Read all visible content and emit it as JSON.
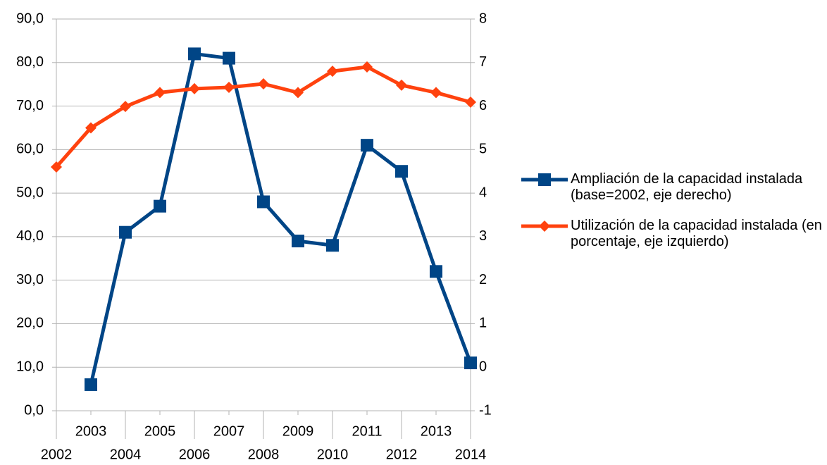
{
  "chart_data": {
    "type": "line",
    "categories": [
      "2002",
      "2003",
      "2004",
      "2005",
      "2006",
      "2007",
      "2008",
      "2009",
      "2010",
      "2011",
      "2012",
      "2013",
      "2014"
    ],
    "series": [
      {
        "name": "Ampliación de la capacidad instalada (base=2002, eje derecho)",
        "color": "#004586",
        "marker": "square",
        "axis": "y2",
        "values": [
          null,
          -0.4,
          3.1,
          3.7,
          7.2,
          7.1,
          3.8,
          2.9,
          2.8,
          5.1,
          4.5,
          2.2,
          0.1
        ]
      },
      {
        "name": "Utilización de la capacidad instalada (en porcentaje, eje izquierdo)",
        "color": "#ff420e",
        "marker": "diamond",
        "values": [
          56.0,
          65.0,
          69.9,
          73.1,
          74.0,
          74.3,
          75.1,
          73.1,
          78.0,
          79.0,
          74.8,
          73.1,
          70.9
        ]
      }
    ],
    "ylim": [
      0,
      90
    ],
    "yticks": [
      {
        "value": 0,
        "label": "0,0"
      },
      {
        "value": 10,
        "label": "10,0"
      },
      {
        "value": 20,
        "label": "20,0"
      },
      {
        "value": 30,
        "label": "30,0"
      },
      {
        "value": 40,
        "label": "40,0"
      },
      {
        "value": 50,
        "label": "50,0"
      },
      {
        "value": 60,
        "label": "60,0"
      },
      {
        "value": 70,
        "label": "70,0"
      },
      {
        "value": 80,
        "label": "80,0"
      },
      {
        "value": 90,
        "label": "90,0"
      }
    ],
    "y2lim": [
      -1,
      8
    ],
    "y2ticks": [
      -1,
      0,
      1,
      2,
      3,
      4,
      5,
      6,
      7,
      8
    ],
    "grid": true,
    "legend": "right"
  }
}
